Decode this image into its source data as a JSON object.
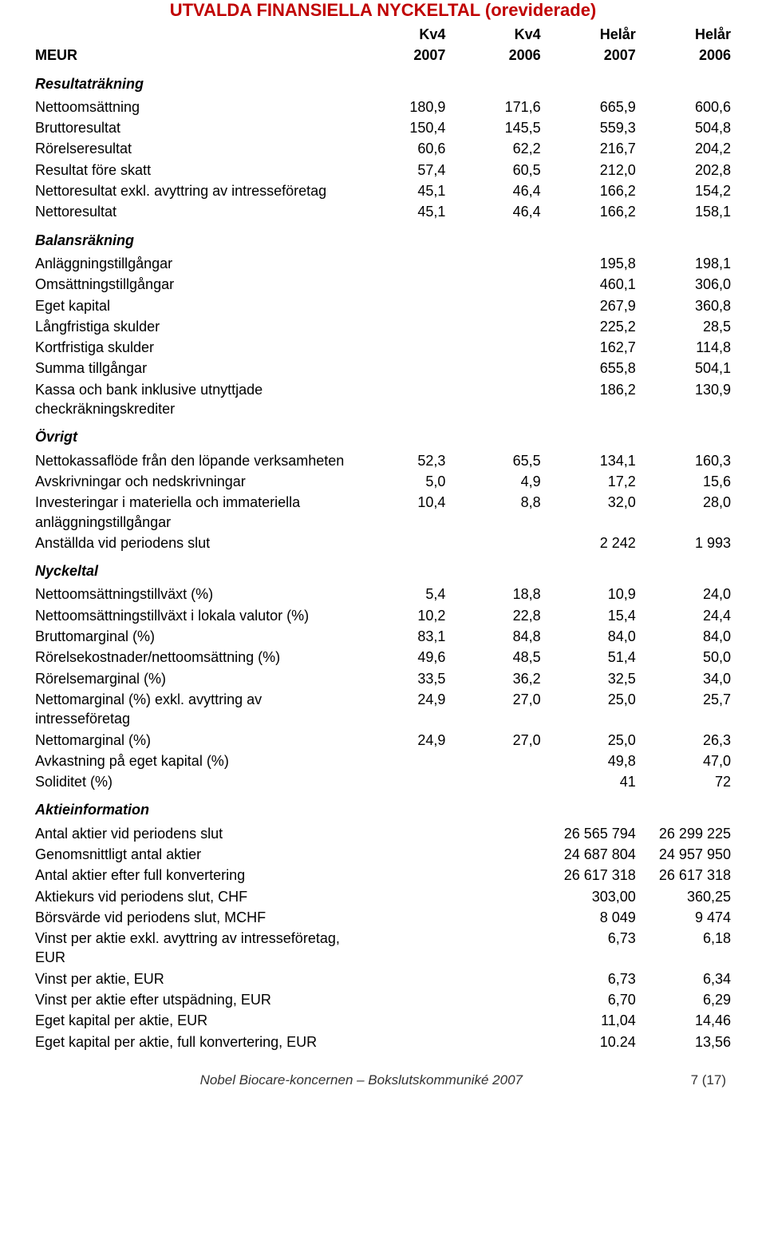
{
  "title": "UTVALDA FINANSIELLA NYCKELTAL (oreviderade)",
  "header": {
    "col0": "MEUR",
    "periods": [
      "Kv4",
      "Kv4",
      "Helår",
      "Helår"
    ],
    "years": [
      "2007",
      "2006",
      "2007",
      "2006"
    ]
  },
  "sections": [
    {
      "heading": "Resultaträkning",
      "rows": [
        {
          "label": "Nettoomsättning",
          "v": [
            "180,9",
            "171,6",
            "665,9",
            "600,6"
          ]
        },
        {
          "label": "Bruttoresultat",
          "v": [
            "150,4",
            "145,5",
            "559,3",
            "504,8"
          ]
        },
        {
          "label": "Rörelseresultat",
          "v": [
            "60,6",
            "62,2",
            "216,7",
            "204,2"
          ]
        },
        {
          "label": "Resultat före skatt",
          "v": [
            "57,4",
            "60,5",
            "212,0",
            "202,8"
          ]
        },
        {
          "label": "Nettoresultat exkl. avyttring av intresseföretag",
          "v": [
            "45,1",
            "46,4",
            "166,2",
            "154,2"
          ]
        },
        {
          "label": "Nettoresultat",
          "v": [
            "45,1",
            "46,4",
            "166,2",
            "158,1"
          ]
        }
      ]
    },
    {
      "heading": "Balansräkning",
      "rows": [
        {
          "label": "Anläggningstillgångar",
          "v": [
            "",
            "",
            "195,8",
            "198,1"
          ]
        },
        {
          "label": "Omsättningstillgångar",
          "v": [
            "",
            "",
            "460,1",
            "306,0"
          ]
        },
        {
          "label": "Eget kapital",
          "v": [
            "",
            "",
            "267,9",
            "360,8"
          ]
        },
        {
          "label": "Långfristiga skulder",
          "v": [
            "",
            "",
            "225,2",
            "28,5"
          ]
        },
        {
          "label": "Kortfristiga skulder",
          "v": [
            "",
            "",
            "162,7",
            "114,8"
          ]
        },
        {
          "label": "Summa tillgångar",
          "v": [
            "",
            "",
            "655,8",
            "504,1"
          ]
        },
        {
          "label": "Kassa och bank inklusive utnyttjade checkräkningskrediter",
          "v": [
            "",
            "",
            "186,2",
            "130,9"
          ]
        }
      ]
    },
    {
      "heading": "Övrigt",
      "rows": [
        {
          "label": "Nettokassaflöde från den löpande verksamheten",
          "v": [
            "52,3",
            "65,5",
            "134,1",
            "160,3"
          ]
        },
        {
          "label": "Avskrivningar och nedskrivningar",
          "v": [
            "5,0",
            "4,9",
            "17,2",
            "15,6"
          ]
        },
        {
          "label": "Investeringar i materiella och immateriella anläggningstillgångar",
          "v": [
            "10,4",
            "8,8",
            "32,0",
            "28,0"
          ]
        },
        {
          "label": "Anställda vid periodens slut",
          "v": [
            "",
            "",
            "2 242",
            "1 993"
          ]
        }
      ]
    },
    {
      "heading": "Nyckeltal",
      "rows": [
        {
          "label": "Nettoomsättningstillväxt (%)",
          "v": [
            "5,4",
            "18,8",
            "10,9",
            "24,0"
          ]
        },
        {
          "label": "Nettoomsättningstillväxt i lokala valutor (%)",
          "v": [
            "10,2",
            "22,8",
            "15,4",
            "24,4"
          ]
        },
        {
          "label": "Bruttomarginal (%)",
          "v": [
            "83,1",
            "84,8",
            "84,0",
            "84,0"
          ]
        },
        {
          "label": "Rörelsekostnader/nettoomsättning (%)",
          "v": [
            "49,6",
            "48,5",
            "51,4",
            "50,0"
          ]
        },
        {
          "label": "Rörelsemarginal (%)",
          "v": [
            "33,5",
            "36,2",
            "32,5",
            "34,0"
          ]
        },
        {
          "label": "Nettomarginal (%) exkl. avyttring av intresseföretag",
          "v": [
            "24,9",
            "27,0",
            "25,0",
            "25,7"
          ]
        },
        {
          "label": "Nettomarginal (%)",
          "v": [
            "24,9",
            "27,0",
            "25,0",
            "26,3"
          ]
        },
        {
          "label": "Avkastning på eget kapital (%)",
          "v": [
            "",
            "",
            "49,8",
            "47,0"
          ]
        },
        {
          "label": "Soliditet (%)",
          "v": [
            "",
            "",
            "41",
            "72"
          ]
        }
      ]
    },
    {
      "heading": "Aktieinformation",
      "rows": [
        {
          "label": "Antal aktier vid periodens slut",
          "v": [
            "",
            "",
            "26 565 794",
            "26 299 225"
          ]
        },
        {
          "label": "Genomsnittligt antal aktier",
          "v": [
            "",
            "",
            "24 687 804",
            "24 957 950"
          ]
        },
        {
          "label": "Antal aktier efter full konvertering",
          "v": [
            "",
            "",
            "26 617 318",
            "26 617 318"
          ]
        },
        {
          "label": "Aktiekurs vid periodens slut, CHF",
          "v": [
            "",
            "",
            "303,00",
            "360,25"
          ]
        },
        {
          "label": "Börsvärde vid periodens slut, MCHF",
          "v": [
            "",
            "",
            "8 049",
            "9 474"
          ]
        },
        {
          "label": "Vinst per aktie exkl. avyttring av intresseföretag, EUR",
          "v": [
            "",
            "",
            "6,73",
            "6,18"
          ]
        },
        {
          "label": "Vinst per aktie, EUR",
          "v": [
            "",
            "",
            "6,73",
            "6,34"
          ]
        },
        {
          "label": "Vinst per aktie efter utspädning, EUR",
          "v": [
            "",
            "",
            "6,70",
            "6,29"
          ]
        },
        {
          "label": "Eget kapital per aktie, EUR",
          "v": [
            "",
            "",
            "11,04",
            "14,46"
          ]
        },
        {
          "label": "Eget kapital per aktie, full konvertering, EUR",
          "v": [
            "",
            "",
            "10.24",
            "13,56"
          ]
        }
      ]
    }
  ],
  "footer": {
    "text": "Nobel Biocare-koncernen – Bokslutskommuniké 2007",
    "page": "7 (17)"
  }
}
